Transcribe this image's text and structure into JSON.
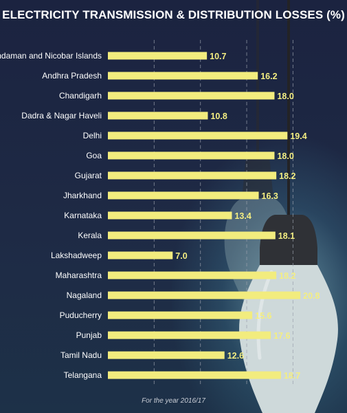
{
  "title": "ELECTRICITY TRANSMISSION & DISTRIBUTION LOSSES (%)",
  "footnote": "For the year 2016/17",
  "chart_data": {
    "type": "bar",
    "orientation": "horizontal",
    "title": "ELECTRICITY TRANSMISSION & DISTRIBUTION LOSSES (%)",
    "categories": [
      "Andaman and Nicobar Islands",
      "Andhra Pradesh",
      "Chandigarh",
      "Dadra & Nagar Haveli",
      "Delhi",
      "Goa",
      "Gujarat",
      "Jharkhand",
      "Karnataka",
      "Kerala",
      "Lakshadweep",
      "Maharashtra",
      "Nagaland",
      "Puducherry",
      "Punjab",
      "Tamil Nadu",
      "Telangana"
    ],
    "values": [
      10.7,
      16.2,
      18.0,
      10.8,
      19.4,
      18.0,
      18.2,
      16.3,
      13.4,
      18.1,
      7.0,
      18.2,
      20.8,
      15.6,
      17.6,
      12.6,
      18.7
    ],
    "value_labels": [
      "10.7",
      "16.2",
      "18.0",
      "10.8",
      "19.4",
      "18.0",
      "18.2",
      "16.3",
      "13.4",
      "18.1",
      "7.0",
      "18.2",
      "20.8",
      "15.6",
      "17.6",
      "12.6",
      "18.7"
    ],
    "xlim": [
      0,
      25
    ],
    "grid": true,
    "grid_style": "dashed vertical",
    "bar_color": "#f2ec7e",
    "label_color": "#ffffff",
    "value_color": "#f4ee82",
    "background_color": "#1e2742"
  }
}
